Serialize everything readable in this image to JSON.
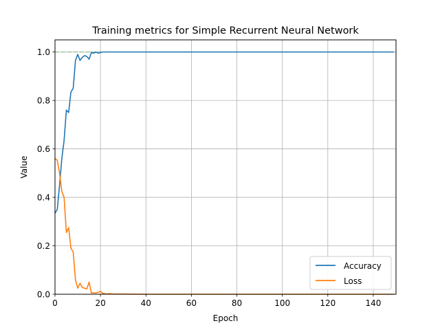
{
  "chart_data": {
    "type": "line",
    "title": "Training metrics for Simple Recurrent Neural Network",
    "xlabel": "Epoch",
    "ylabel": "Value",
    "xlim": [
      0,
      150
    ],
    "ylim": [
      0,
      1.05
    ],
    "xticks": [
      0,
      20,
      40,
      60,
      80,
      100,
      120,
      140
    ],
    "yticks": [
      0.0,
      0.2,
      0.4,
      0.6,
      0.8,
      1.0
    ],
    "xtick_labels": [
      "0",
      "20",
      "40",
      "60",
      "80",
      "100",
      "120",
      "140"
    ],
    "ytick_labels": [
      "0.0",
      "0.2",
      "0.4",
      "0.6",
      "0.8",
      "1.0"
    ],
    "grid": true,
    "legend_position": "bottom-right",
    "reference_line": {
      "y": 1.0,
      "style": "dashed",
      "color": "#8fbc8f"
    },
    "series": [
      {
        "name": "Accuracy",
        "color": "#1f77b4",
        "x": [
          0,
          1,
          2,
          3,
          4,
          5,
          6,
          7,
          8,
          9,
          10,
          11,
          12,
          13,
          14,
          15,
          16,
          17,
          18,
          19,
          20,
          21,
          22,
          23,
          24,
          25,
          30,
          40,
          50,
          60,
          70,
          80,
          90,
          100,
          110,
          120,
          130,
          140,
          149
        ],
        "y": [
          0.335,
          0.35,
          0.45,
          0.56,
          0.635,
          0.76,
          0.75,
          0.835,
          0.85,
          0.965,
          0.99,
          0.965,
          0.978,
          0.985,
          0.982,
          0.97,
          0.998,
          0.995,
          1.0,
          0.995,
          0.998,
          1.0,
          1.0,
          1.0,
          1.0,
          1.0,
          1.0,
          1.0,
          1.0,
          1.0,
          1.0,
          1.0,
          1.0,
          1.0,
          1.0,
          1.0,
          1.0,
          1.0,
          1.0
        ]
      },
      {
        "name": "Loss",
        "color": "#ff7f0e",
        "x": [
          0,
          1,
          2,
          3,
          4,
          5,
          6,
          7,
          8,
          9,
          10,
          11,
          12,
          13,
          14,
          15,
          16,
          17,
          18,
          19,
          20,
          21,
          22,
          23,
          24,
          25,
          30,
          40,
          50,
          60,
          70,
          80,
          90,
          100,
          110,
          120,
          130,
          140,
          149
        ],
        "y": [
          0.56,
          0.553,
          0.5,
          0.425,
          0.4,
          0.255,
          0.275,
          0.19,
          0.175,
          0.06,
          0.025,
          0.045,
          0.028,
          0.025,
          0.022,
          0.05,
          0.005,
          0.006,
          0.005,
          0.008,
          0.012,
          0.004,
          0.002,
          0.001,
          0.003,
          0.001,
          0.001,
          0.0,
          0.0,
          0.0,
          0.0,
          0.0,
          0.0,
          0.0,
          0.0,
          0.0,
          0.0,
          0.0,
          0.0
        ]
      }
    ]
  }
}
